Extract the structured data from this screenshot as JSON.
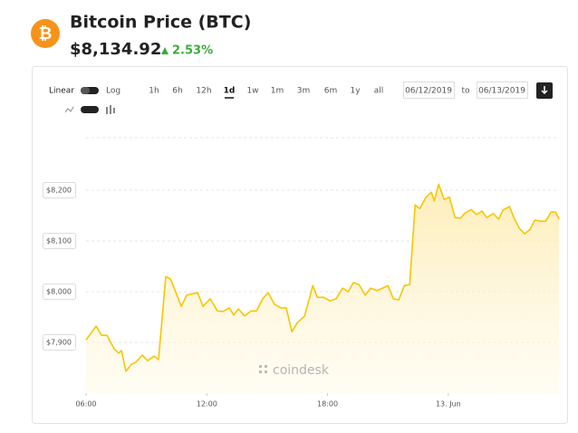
{
  "header": {
    "title": "Bitcoin Price (BTC)",
    "price": "$8,134.92",
    "change": "2.53%"
  },
  "controls": {
    "scale": [
      "Linear",
      "Log"
    ],
    "periods": [
      "1h",
      "6h",
      "12h",
      "1d",
      "1w",
      "1m",
      "3m",
      "6m",
      "1y",
      "all"
    ],
    "active_period": "1d",
    "from": "06/12/2019",
    "to_label": "to",
    "to": "06/13/2019"
  },
  "watermark": "coindesk",
  "chart_data": {
    "type": "line",
    "color": "#f7c600",
    "grid": true,
    "x": [
      6.0,
      6.5,
      6.77,
      7.04,
      7.4,
      7.62,
      7.76,
      7.98,
      8.25,
      8.48,
      8.79,
      9.06,
      9.38,
      9.6,
      9.96,
      10.19,
      10.41,
      10.73,
      11.0,
      11.32,
      11.54,
      11.81,
      12.17,
      12.53,
      12.8,
      13.12,
      13.34,
      13.57,
      13.88,
      14.2,
      14.47,
      14.78,
      15.05,
      15.37,
      15.68,
      15.95,
      16.23,
      16.5,
      16.86,
      17.27,
      17.49,
      17.8,
      18.12,
      18.43,
      18.75,
      19.02,
      19.29,
      19.56,
      19.87,
      20.14,
      20.46,
      20.73,
      21.0,
      21.27,
      21.54,
      21.81,
      22.08,
      22.35,
      22.58,
      22.89,
      23.16,
      23.3,
      23.52,
      23.79,
      24.06,
      24.33,
      24.6,
      24.83,
      25.14,
      25.41,
      25.68,
      25.91,
      26.23,
      26.5,
      26.72,
      27.04,
      27.26,
      27.53,
      27.8,
      28.07,
      28.3,
      28.57,
      28.84,
      29.11,
      29.33,
      29.51
    ],
    "values": [
      7905,
      7932,
      7914,
      7914,
      7887,
      7879,
      7884,
      7843,
      7857,
      7861,
      7875,
      7864,
      7873,
      7866,
      8030,
      8025,
      8004,
      7971,
      7993,
      7996,
      7998,
      7971,
      7986,
      7962,
      7961,
      7968,
      7954,
      7966,
      7952,
      7962,
      7962,
      7986,
      7998,
      7975,
      7968,
      7968,
      7921,
      7939,
      7952,
      8012,
      7989,
      7989,
      7982,
      7986,
      8007,
      8000,
      8018,
      8014,
      7993,
      8007,
      8002,
      8007,
      8012,
      7986,
      7984,
      8012,
      8014,
      8171,
      8164,
      8186,
      8196,
      8179,
      8212,
      8182,
      8186,
      8146,
      8145,
      8155,
      8162,
      8152,
      8159,
      8146,
      8154,
      8143,
      8161,
      8168,
      8146,
      8125,
      8114,
      8123,
      8141,
      8139,
      8139,
      8157,
      8157,
      8143
    ],
    "xlim": [
      6,
      29.5
    ],
    "xticks": [
      {
        "value": 6,
        "label": "06:00"
      },
      {
        "value": 12,
        "label": "12:00"
      },
      {
        "value": 18,
        "label": "18:00"
      },
      {
        "value": 24,
        "label": "13. Jun"
      }
    ],
    "ylim": [
      7800,
      8305
    ],
    "yticks": [
      {
        "value": 7900,
        "label": "$7,900"
      },
      {
        "value": 8000,
        "label": "$8,000"
      },
      {
        "value": 8100,
        "label": "$8,100"
      },
      {
        "value": 8200,
        "label": "$8,200"
      }
    ]
  }
}
